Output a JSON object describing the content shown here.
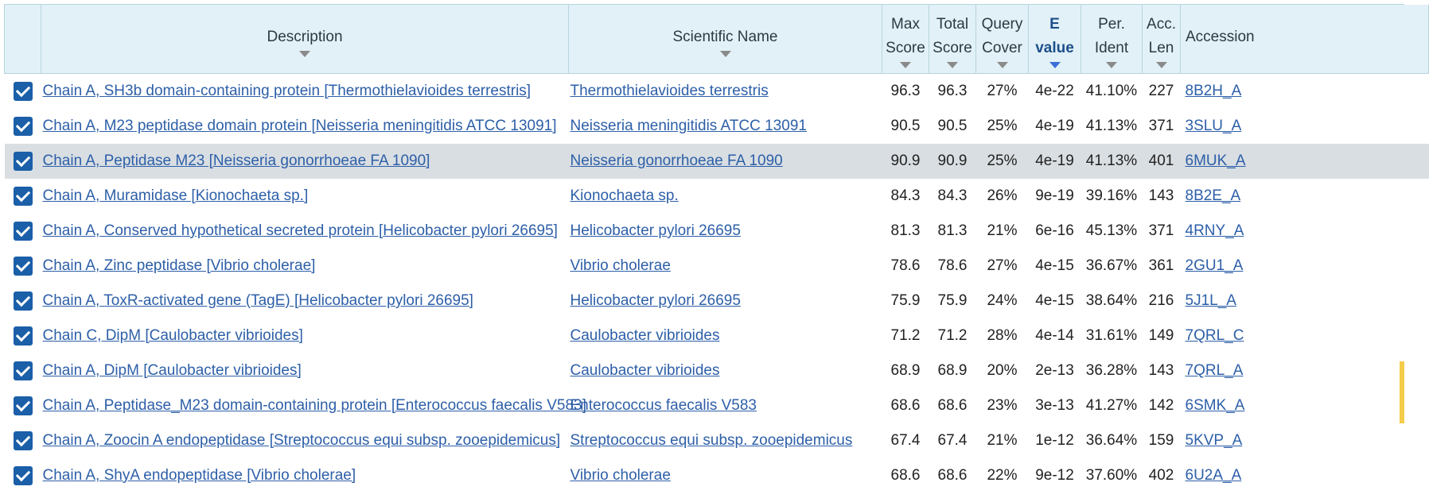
{
  "columns": {
    "description": "Description",
    "scientific_name": "Scientific Name",
    "max_score": [
      "Max",
      "Score"
    ],
    "total_score": [
      "Total",
      "Score"
    ],
    "query_cover": [
      "Query",
      "Cover"
    ],
    "e_value": [
      "E",
      "value"
    ],
    "per_ident": [
      "Per.",
      "Ident"
    ],
    "acc_len": [
      "Acc.",
      "Len"
    ],
    "accession": "Accession"
  },
  "rows": [
    {
      "description": "Chain A, SH3b domain-containing protein [Thermothielavioides terrestris]",
      "scientific_name": "Thermothielavioides terrestris",
      "max_score": "96.3",
      "total_score": "96.3",
      "query_cover": "27%",
      "e_value": "4e-22",
      "per_ident": "41.10%",
      "acc_len": "227",
      "accession": "8B2H_A"
    },
    {
      "description": "Chain A, M23 peptidase domain protein [Neisseria meningitidis ATCC 13091]",
      "scientific_name": "Neisseria meningitidis ATCC 13091",
      "max_score": "90.5",
      "total_score": "90.5",
      "query_cover": "25%",
      "e_value": "4e-19",
      "per_ident": "41.13%",
      "acc_len": "371",
      "accession": "3SLU_A"
    },
    {
      "description": "Chain A, Peptidase M23 [Neisseria gonorrhoeae FA 1090]",
      "scientific_name": "Neisseria gonorrhoeae FA 1090",
      "max_score": "90.9",
      "total_score": "90.9",
      "query_cover": "25%",
      "e_value": "4e-19",
      "per_ident": "41.13%",
      "acc_len": "401",
      "accession": "6MUK_A"
    },
    {
      "description": "Chain A, Muramidase [Kionochaeta sp.]",
      "scientific_name": "Kionochaeta sp.",
      "max_score": "84.3",
      "total_score": "84.3",
      "query_cover": "26%",
      "e_value": "9e-19",
      "per_ident": "39.16%",
      "acc_len": "143",
      "accession": "8B2E_A"
    },
    {
      "description": "Chain A, Conserved hypothetical secreted protein [Helicobacter pylori 26695]",
      "scientific_name": "Helicobacter pylori 26695",
      "max_score": "81.3",
      "total_score": "81.3",
      "query_cover": "21%",
      "e_value": "6e-16",
      "per_ident": "45.13%",
      "acc_len": "371",
      "accession": "4RNY_A"
    },
    {
      "description": "Chain A, Zinc peptidase [Vibrio cholerae]",
      "scientific_name": "Vibrio cholerae",
      "max_score": "78.6",
      "total_score": "78.6",
      "query_cover": "27%",
      "e_value": "4e-15",
      "per_ident": "36.67%",
      "acc_len": "361",
      "accession": "2GU1_A"
    },
    {
      "description": "Chain A, ToxR-activated gene (TagE) [Helicobacter pylori 26695]",
      "scientific_name": "Helicobacter pylori 26695",
      "max_score": "75.9",
      "total_score": "75.9",
      "query_cover": "24%",
      "e_value": "4e-15",
      "per_ident": "38.64%",
      "acc_len": "216",
      "accession": "5J1L_A"
    },
    {
      "description": "Chain C, DipM [Caulobacter vibrioides]",
      "scientific_name": "Caulobacter vibrioides",
      "max_score": "71.2",
      "total_score": "71.2",
      "query_cover": "28%",
      "e_value": "4e-14",
      "per_ident": "31.61%",
      "acc_len": "149",
      "accession": "7QRL_C"
    },
    {
      "description": "Chain A, DipM [Caulobacter vibrioides]",
      "scientific_name": "Caulobacter vibrioides",
      "max_score": "68.9",
      "total_score": "68.9",
      "query_cover": "20%",
      "e_value": "2e-13",
      "per_ident": "36.28%",
      "acc_len": "143",
      "accession": "7QRL_A"
    },
    {
      "description": "Chain A, Peptidase_M23 domain-containing protein [Enterococcus faecalis V583]",
      "scientific_name": "Enterococcus faecalis V583",
      "max_score": "68.6",
      "total_score": "68.6",
      "query_cover": "23%",
      "e_value": "3e-13",
      "per_ident": "41.27%",
      "acc_len": "142",
      "accession": "6SMK_A"
    },
    {
      "description": "Chain A, Zoocin A endopeptidase [Streptococcus equi subsp. zooepidemicus]",
      "scientific_name": "Streptococcus equi subsp. zooepidemicus",
      "max_score": "67.4",
      "total_score": "67.4",
      "query_cover": "21%",
      "e_value": "1e-12",
      "per_ident": "36.64%",
      "acc_len": "159",
      "accession": "5KVP_A"
    },
    {
      "description": "Chain A, ShyA endopeptidase [Vibrio cholerae]",
      "scientific_name": "Vibrio cholerae",
      "max_score": "68.6",
      "total_score": "68.6",
      "query_cover": "22%",
      "e_value": "9e-12",
      "per_ident": "37.60%",
      "acc_len": "402",
      "accession": "6U2A_A"
    }
  ],
  "highlighted_row": 2,
  "colors": {
    "header_bg": "#e2f1f7",
    "link": "#2d5fa8",
    "checkbox": "#1a5fa8",
    "highlight_row": "#d9dee2",
    "active_sort": "#3b6fd8"
  }
}
